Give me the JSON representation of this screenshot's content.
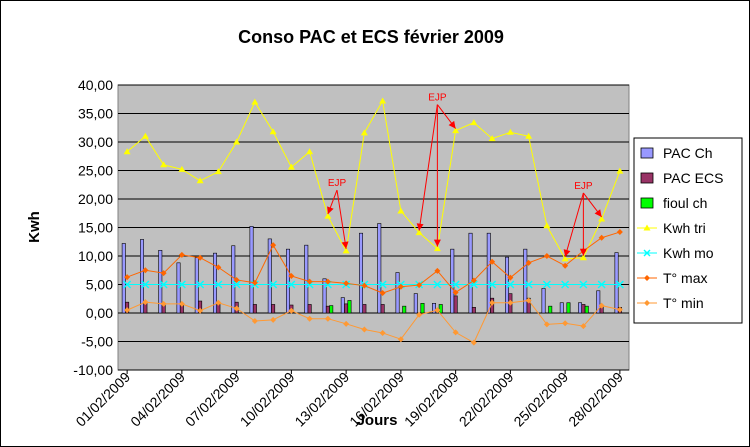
{
  "chart_data": {
    "type": "bar",
    "title": "Conso PAC et ECS février 2009",
    "xlabel": "Jours",
    "ylabel": "Kwh",
    "ylim": [
      -10,
      40
    ],
    "y_ticks": [
      "-10,00",
      "-5,00",
      "0,00",
      "5,00",
      "10,00",
      "15,00",
      "20,00",
      "25,00",
      "30,00",
      "35,00",
      "40,00"
    ],
    "x_ticks": [
      {
        "day": 1,
        "label": "01/02/2009"
      },
      {
        "day": 4,
        "label": "04/02/2009"
      },
      {
        "day": 7,
        "label": "07/02/2009"
      },
      {
        "day": 10,
        "label": "10/02/2009"
      },
      {
        "day": 13,
        "label": "13/02/2009"
      },
      {
        "day": 16,
        "label": "16/02/2009"
      },
      {
        "day": 19,
        "label": "19/02/2009"
      },
      {
        "day": 22,
        "label": "22/02/2009"
      },
      {
        "day": 25,
        "label": "25/02/2009"
      },
      {
        "day": 28,
        "label": "28/02/2009"
      }
    ],
    "grid": true,
    "legend_position": "right",
    "series": [
      {
        "name": "PAC Ch",
        "kind": "bar",
        "color": "#9999ff",
        "values": [
          12.2,
          12.9,
          11.0,
          8.8,
          9.7,
          10.5,
          11.8,
          15.2,
          13.0,
          11.2,
          11.9,
          6.0,
          2.7,
          14.0,
          15.7,
          7.1,
          3.4,
          1.7,
          11.2,
          14.0,
          14.0,
          9.8,
          11.2,
          4.3,
          1.8,
          1.8,
          3.9,
          10.6
        ]
      },
      {
        "name": "PAC ECS",
        "kind": "bar",
        "color": "#993366",
        "values": [
          1.9,
          1.7,
          1.6,
          1.6,
          2.1,
          1.5,
          1.9,
          1.5,
          1.5,
          1.4,
          1.5,
          1.2,
          1.6,
          1.5,
          1.5,
          0.0,
          0.0,
          0.0,
          3.0,
          1.0,
          2.6,
          3.4,
          2.6,
          0.0,
          0.0,
          1.5,
          1.3,
          1.0
        ]
      },
      {
        "name": "fioul ch",
        "kind": "bar",
        "color": "#00ff00",
        "values": [
          0,
          0,
          0,
          0,
          0,
          0,
          0,
          0,
          0,
          0,
          0,
          1.3,
          2.2,
          0,
          0,
          1.2,
          1.7,
          1.5,
          0,
          0,
          0,
          0,
          0,
          1.2,
          1.8,
          1.2,
          0,
          0
        ]
      },
      {
        "name": "Kwh tri",
        "kind": "line",
        "color": "#ffff00",
        "values": [
          28.3,
          31.0,
          26.0,
          25.2,
          23.2,
          24.8,
          30.0,
          37.0,
          31.8,
          25.6,
          28.3,
          17.0,
          10.9,
          31.6,
          37.2,
          17.9,
          14.1,
          11.3,
          32.0,
          33.4,
          30.6,
          31.7,
          31.0,
          15.3,
          9.5,
          9.7,
          16.5,
          24.9
        ]
      },
      {
        "name": "Kwh mo",
        "kind": "line",
        "color": "#00ffff",
        "values": [
          5,
          5,
          5,
          5,
          5,
          5,
          5,
          5,
          5,
          5,
          5,
          5,
          5,
          5,
          5,
          5,
          5,
          5,
          5,
          5,
          5,
          5,
          5,
          5,
          5,
          5,
          5,
          5
        ]
      },
      {
        "name": "T° max",
        "kind": "line",
        "color": "#ff6600",
        "values": [
          6.3,
          7.5,
          7.0,
          10.2,
          9.7,
          8.0,
          5.8,
          5.3,
          11.9,
          6.5,
          5.5,
          5.5,
          5.2,
          4.8,
          3.5,
          4.6,
          4.9,
          7.4,
          3.6,
          5.7,
          9.0,
          6.2,
          8.8,
          10.0,
          8.3,
          10.9,
          13.2,
          14.2
        ]
      },
      {
        "name": "T° min",
        "kind": "line",
        "color": "#ff9933",
        "values": [
          0.5,
          1.9,
          1.6,
          1.6,
          0.4,
          1.8,
          0.8,
          -1.4,
          -1.2,
          0.4,
          -1.0,
          -1.0,
          -1.9,
          -2.9,
          -3.5,
          -4.6,
          -0.3,
          0.5,
          -3.4,
          -5.2,
          1.8,
          1.8,
          2.2,
          -2.0,
          -1.8,
          -2.3,
          1.3,
          0.6
        ]
      }
    ],
    "annotations": [
      {
        "text": "EJP",
        "arrow_days": [
          12,
          13
        ]
      },
      {
        "text": "EJP",
        "arrow_days": [
          17,
          18,
          19
        ]
      },
      {
        "text": "EJP",
        "arrow_days": [
          25,
          26,
          27
        ]
      }
    ]
  }
}
